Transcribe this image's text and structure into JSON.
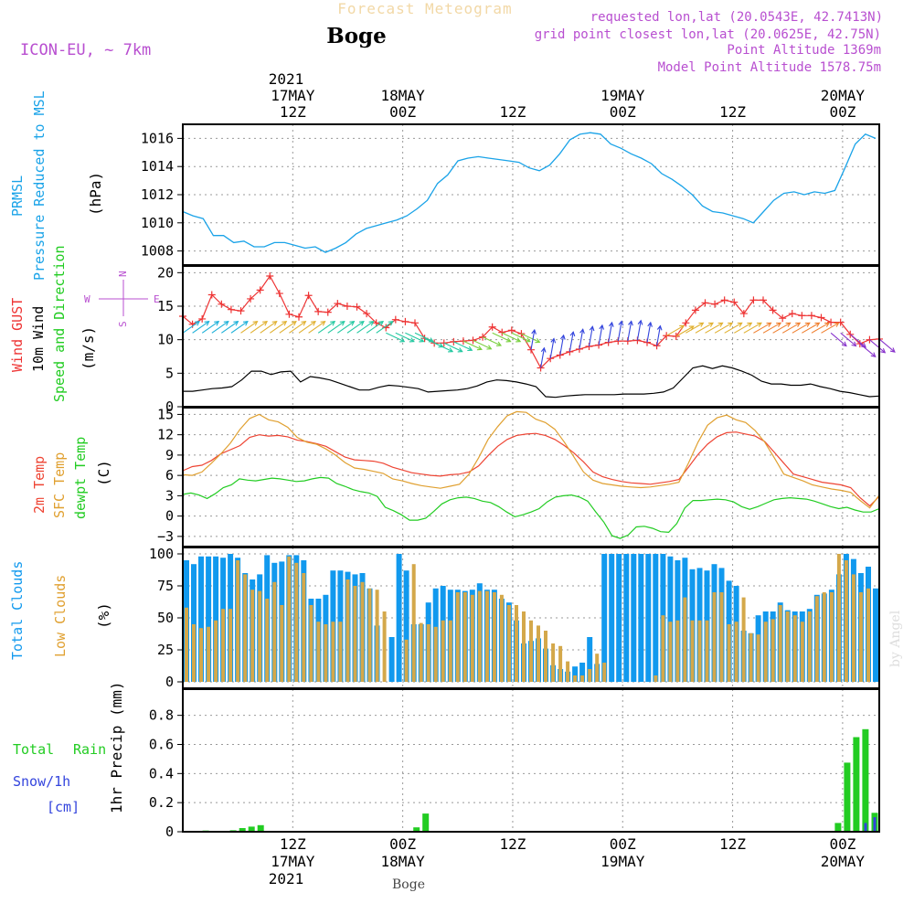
{
  "header": {
    "product": "Forecast Meteogram",
    "station": "Boge",
    "model": "ICON-EU, ~ 7km",
    "requested": "requested lon,lat (20.0543E, 42.7413N)",
    "gridpoint": "grid point closest lon,lat (20.0625E, 42.75N)",
    "altitude": "Point Altitude 1369m",
    "model_altitude": "Model Point Altitude 1578.75m",
    "watermark": "by Angel",
    "footer_station": "Boge"
  },
  "colors": {
    "pressure": "#1aa3e8",
    "gust": "#ee3333",
    "wind": "#000000",
    "temp2m": "#ee4433",
    "sfc": "#e0a030",
    "dewpt": "#22cc22",
    "total_clouds": "#1199ee",
    "low_clouds": "#d4a84a",
    "rain": "#22cc22",
    "snow": "#3344dd",
    "purple": "#b84fd0"
  },
  "time_axis": {
    "top_year": "2021",
    "bottom_year": "2021",
    "ticks": [
      {
        "t": 12,
        "hour": "12Z",
        "date": "17MAY"
      },
      {
        "t": 24,
        "hour": "00Z",
        "date": "18MAY"
      },
      {
        "t": 36,
        "hour": "12Z",
        "date": ""
      },
      {
        "t": 48,
        "hour": "00Z",
        "date": "19MAY"
      },
      {
        "t": 60,
        "hour": "12Z",
        "date": ""
      },
      {
        "t": 72,
        "hour": "00Z",
        "date": "20MAY"
      }
    ]
  },
  "chart_data": [
    {
      "type": "line",
      "id": "pressure",
      "labels": {
        "line1": "PRMSL",
        "line2": "Pressure Reduced to MSL",
        "unit": "(hPa)"
      },
      "ylim": [
        1007,
        1017
      ],
      "yticks": [
        1008,
        1010,
        1012,
        1014,
        1016
      ],
      "series": [
        {
          "name": "PRMSL",
          "values": [
            1010.8,
            1010.5,
            1010.3,
            1009.1,
            1009.1,
            1008.6,
            1008.7,
            1008.3,
            1008.3,
            1008.6,
            1008.6,
            1008.4,
            1008.2,
            1008.3,
            1007.9,
            1008.2,
            1008.6,
            1009.2,
            1009.6,
            1009.8,
            1010.0,
            1010.2,
            1010.5,
            1011.0,
            1011.6,
            1012.8,
            1013.4,
            1014.4,
            1014.6,
            1014.7,
            1014.6,
            1014.5,
            1014.4,
            1014.3,
            1013.9,
            1013.7,
            1014.1,
            1014.9,
            1015.9,
            1016.3,
            1016.4,
            1016.3,
            1015.6,
            1015.3,
            1014.9,
            1014.6,
            1014.2,
            1013.5,
            1013.1,
            1012.6,
            1012.0,
            1011.2,
            1010.8,
            1010.7,
            1010.5,
            1010.3,
            1010.0,
            1010.8,
            1011.6,
            1012.1,
            1012.2,
            1012.0,
            1012.2,
            1012.1,
            1012.3,
            1013.9,
            1015.6,
            1016.3,
            1016.0
          ]
        }
      ]
    },
    {
      "type": "line",
      "id": "wind",
      "labels": {
        "gust": "Wind GUST",
        "wind": "10m Wind",
        "dir": "Speed and Direction",
        "unit": "(m/s)"
      },
      "compass": {
        "n": "N",
        "s": "S",
        "w": "W",
        "e": "E"
      },
      "ylim": [
        0,
        21
      ],
      "yticks": [
        0,
        5,
        10,
        15,
        20
      ],
      "series": [
        {
          "name": "Wind GUST",
          "values": [
            13.5,
            12.3,
            13.1,
            16.7,
            15.3,
            14.5,
            14.3,
            16.1,
            17.4,
            19.5,
            16.9,
            13.8,
            13.4,
            16.6,
            14.2,
            14.1,
            15.4,
            15.0,
            14.9,
            13.9,
            12.5,
            11.8,
            13.0,
            12.7,
            12.5,
            10.2,
            9.5,
            9.5,
            9.7,
            9.8,
            9.9,
            10.4,
            11.9,
            11.1,
            11.4,
            10.9,
            8.5,
            5.8,
            7.2,
            7.7,
            8.2,
            8.6,
            9.0,
            9.2,
            9.6,
            9.8,
            9.8,
            9.9,
            9.6,
            9.1,
            10.6,
            10.5,
            12.5,
            14.4,
            15.5,
            15.3,
            15.9,
            15.6,
            13.9,
            15.9,
            15.9,
            14.4,
            13.2,
            13.9,
            13.6,
            13.6,
            13.3,
            12.6,
            12.6,
            10.8,
            9.4,
            10.0,
            10.1
          ]
        },
        {
          "name": "10m Wind",
          "values": [
            2.3,
            2.3,
            2.5,
            2.7,
            2.8,
            3.0,
            4.0,
            5.3,
            5.3,
            4.8,
            5.2,
            5.3,
            3.7,
            4.5,
            4.3,
            4.0,
            3.5,
            3.0,
            2.5,
            2.5,
            2.9,
            3.2,
            3.1,
            2.9,
            2.7,
            2.2,
            2.3,
            2.4,
            2.5,
            2.7,
            3.1,
            3.7,
            4.0,
            3.9,
            3.7,
            3.4,
            3.0,
            1.5,
            1.4,
            1.6,
            1.7,
            1.8,
            1.8,
            1.8,
            1.8,
            1.9,
            1.9,
            1.9,
            2.0,
            2.2,
            2.8,
            4.3,
            5.8,
            6.1,
            5.7,
            6.1,
            5.8,
            5.3,
            4.7,
            3.8,
            3.4,
            3.4,
            3.2,
            3.2,
            3.4,
            3.0,
            2.7,
            2.3,
            2.1,
            1.8,
            1.5,
            1.6
          ]
        }
      ]
    },
    {
      "type": "line",
      "id": "temperature",
      "labels": {
        "t2m": "2m Temp",
        "sfc": "SFC Temp",
        "dew": "dewpt Temp",
        "unit": "(C)"
      },
      "ylim": [
        -4.5,
        16
      ],
      "yticks": [
        -3,
        0,
        3,
        6,
        9,
        12,
        15
      ],
      "series": [
        {
          "name": "2m Temp",
          "values": [
            6.7,
            7.3,
            7.5,
            8.2,
            9.2,
            9.8,
            10.4,
            11.6,
            12.0,
            11.8,
            11.9,
            11.7,
            11.2,
            11.0,
            10.7,
            10.3,
            9.5,
            8.7,
            8.3,
            8.2,
            8.1,
            7.8,
            7.2,
            6.8,
            6.4,
            6.2,
            6.0,
            5.9,
            6.1,
            6.2,
            6.5,
            7.4,
            8.9,
            10.3,
            11.3,
            11.9,
            12.1,
            12.2,
            11.9,
            11.3,
            10.4,
            9.3,
            8.0,
            6.5,
            5.8,
            5.4,
            5.1,
            4.9,
            4.8,
            4.7,
            4.9,
            5.1,
            5.4,
            7.2,
            9.1,
            10.6,
            11.7,
            12.3,
            12.4,
            12.1,
            11.8,
            11.0,
            9.4,
            7.8,
            6.2,
            5.8,
            5.4,
            5.0,
            4.8,
            4.6,
            4.2,
            2.7,
            1.5,
            2.9
          ]
        },
        {
          "name": "SFC Temp",
          "values": [
            6.1,
            6.0,
            6.5,
            7.8,
            9.2,
            10.8,
            12.8,
            14.4,
            15.0,
            14.2,
            13.9,
            13.1,
            11.6,
            10.9,
            10.6,
            9.9,
            9.0,
            7.9,
            7.1,
            6.9,
            6.6,
            6.3,
            5.5,
            5.2,
            4.8,
            4.5,
            4.3,
            4.1,
            4.4,
            4.7,
            6.2,
            8.6,
            11.3,
            13.2,
            14.8,
            15.4,
            15.3,
            14.3,
            13.8,
            12.8,
            10.9,
            8.7,
            6.5,
            5.3,
            4.8,
            4.6,
            4.4,
            4.3,
            4.2,
            4.3,
            4.5,
            4.7,
            5.0,
            7.8,
            10.9,
            13.4,
            14.5,
            14.9,
            14.2,
            13.8,
            12.6,
            10.9,
            8.6,
            6.2,
            5.7,
            5.2,
            4.6,
            4.3,
            4.0,
            3.8,
            3.5,
            2.3,
            1.2,
            3.1
          ]
        },
        {
          "name": "dewpt Temp",
          "values": [
            3.2,
            3.4,
            3.1,
            2.6,
            3.3,
            4.2,
            4.6,
            5.5,
            5.3,
            5.2,
            5.4,
            5.6,
            5.5,
            5.3,
            5.1,
            5.2,
            5.5,
            5.7,
            5.6,
            4.8,
            4.4,
            3.9,
            3.6,
            3.4,
            2.9,
            1.3,
            0.8,
            0.2,
            -0.6,
            -0.6,
            -0.3,
            0.7,
            1.8,
            2.4,
            2.7,
            2.8,
            2.6,
            2.2,
            2.0,
            1.4,
            0.6,
            -0.1,
            0.2,
            0.6,
            1.1,
            2.1,
            2.8,
            3.0,
            3.1,
            2.8,
            2.2,
            0.6,
            -0.9,
            -2.9,
            -3.3,
            -2.8,
            -1.6,
            -1.5,
            -1.8,
            -2.3,
            -2.4,
            -1.1,
            1.2,
            2.3,
            2.3,
            2.4,
            2.5,
            2.4,
            2.1,
            1.4,
            1.0,
            1.4,
            1.9,
            2.4,
            2.6,
            2.7,
            2.6,
            2.5,
            2.2,
            1.8,
            1.4,
            1.1,
            1.3,
            0.9,
            0.6,
            0.6,
            1.1
          ]
        }
      ]
    },
    {
      "type": "bar",
      "id": "clouds",
      "labels": {
        "total": "Total Clouds",
        "low": "Low Clouds",
        "unit": "(%)"
      },
      "ylim": [
        -5,
        105
      ],
      "yticks": [
        0,
        25,
        50,
        75,
        100
      ],
      "series": [
        {
          "name": "Total Clouds",
          "values": [
            95,
            92,
            98,
            98,
            98,
            97,
            100,
            97,
            85,
            80,
            84,
            99,
            93,
            94,
            99,
            99,
            95,
            65,
            65,
            68,
            87,
            87,
            86,
            84,
            85,
            73,
            44,
            0,
            35,
            100,
            87,
            45,
            45,
            62,
            73,
            75,
            72,
            72,
            71,
            72,
            77,
            72,
            72,
            65,
            62,
            48,
            30,
            32,
            34,
            26,
            13,
            10,
            8,
            12,
            15,
            35,
            14,
            100,
            100,
            100,
            100,
            100,
            100,
            100,
            100,
            100,
            98,
            95,
            97,
            88,
            89,
            87,
            92,
            89,
            79,
            75,
            40,
            38,
            52,
            55,
            55,
            62,
            56,
            55,
            55,
            57,
            68,
            69,
            72,
            84,
            100,
            96,
            85,
            90,
            73
          ]
        },
        {
          "name": "Low Clouds",
          "values": [
            58,
            45,
            42,
            43,
            48,
            57,
            57,
            95,
            84,
            72,
            71,
            65,
            78,
            60,
            98,
            93,
            85,
            60,
            47,
            45,
            47,
            47,
            80,
            75,
            78,
            73,
            72,
            55,
            0,
            0,
            33,
            92,
            46,
            45,
            43,
            48,
            48,
            70,
            70,
            68,
            71,
            71,
            70,
            68,
            60,
            60,
            55,
            48,
            44,
            40,
            30,
            28,
            16,
            5,
            5,
            10,
            22,
            15,
            0,
            0,
            0,
            0,
            0,
            0,
            5,
            52,
            47,
            48,
            66,
            48,
            48,
            48,
            70,
            70,
            45,
            47,
            66,
            38,
            37,
            47,
            49,
            60,
            55,
            52,
            47,
            55,
            67,
            70,
            70,
            100,
            95,
            84,
            70,
            73
          ]
        }
      ]
    },
    {
      "type": "bar",
      "id": "precip",
      "labels": {
        "total": "Total",
        "rain": "Rain",
        "snow": "Snow/1h",
        "cm": "[cm]",
        "unit": "1hr Precip (mm)"
      },
      "ylim": [
        0,
        0.98
      ],
      "yticks": [
        0,
        0.2,
        0.4,
        0.6,
        0.8
      ],
      "series": [
        {
          "name": "Rain",
          "values": [
            0,
            0,
            0.008,
            0,
            0,
            0.01,
            0.025,
            0.035,
            0.045,
            0.005,
            0,
            0,
            0,
            0,
            0,
            0,
            0,
            0,
            0,
            0,
            0,
            0,
            0,
            0,
            0,
            0.03,
            0.125,
            0,
            0,
            0,
            0,
            0,
            0,
            0,
            0,
            0,
            0,
            0,
            0,
            0,
            0,
            0,
            0,
            0,
            0,
            0,
            0,
            0,
            0,
            0,
            0,
            0,
            0,
            0,
            0,
            0,
            0,
            0,
            0,
            0,
            0,
            0,
            0,
            0,
            0,
            0,
            0,
            0,
            0,
            0,
            0,
            0.06,
            0.475,
            0.65,
            0.705,
            0.13
          ]
        },
        {
          "name": "Snow/1h",
          "values": [
            0,
            0,
            0,
            0,
            0,
            0,
            0,
            0,
            0,
            0,
            0,
            0,
            0,
            0,
            0,
            0,
            0,
            0,
            0,
            0,
            0,
            0,
            0,
            0,
            0,
            0,
            0,
            0,
            0,
            0,
            0,
            0,
            0,
            0,
            0,
            0,
            0,
            0,
            0,
            0,
            0,
            0,
            0,
            0,
            0,
            0,
            0,
            0,
            0,
            0,
            0,
            0,
            0,
            0,
            0,
            0,
            0,
            0,
            0,
            0,
            0,
            0,
            0,
            0,
            0,
            0,
            0,
            0,
            0,
            0,
            0,
            0,
            0,
            0,
            0.06,
            0.1
          ]
        }
      ]
    }
  ]
}
